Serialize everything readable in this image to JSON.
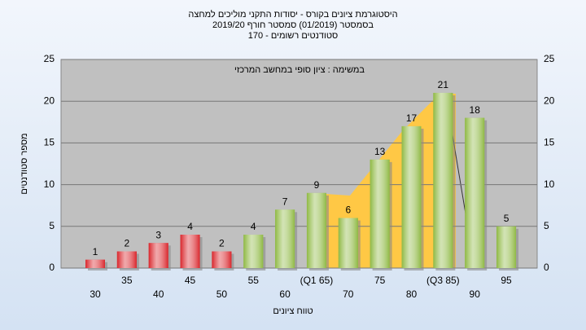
{
  "chart_data": {
    "type": "bar",
    "title": [
      "היסטוגרמת ציונים בקורס - יסודות התקני מוליכים למחצה",
      "בסמסטר  (01/2019)  סמסטר חורף 2019/20",
      "סטודנטים רשומים - 170"
    ],
    "annotation": "במשימה : ציון סופי במחשב המרכזי",
    "x_label": "טווח ציונים",
    "y_label": "מספר סטודנטים",
    "categories": [
      "30",
      "35",
      "40",
      "45",
      "50",
      "55",
      "60",
      "(Q1 65)",
      "70",
      "75",
      "80",
      "(Q3 85)",
      "90",
      "95"
    ],
    "values": [
      1,
      2,
      3,
      4,
      2,
      4,
      7,
      9,
      6,
      13,
      17,
      21,
      18,
      5
    ],
    "colors": [
      "#d9262c",
      "#d9262c",
      "#d9262c",
      "#d9262c",
      "#d9262c",
      "#8fb944",
      "#8fb944",
      "#8fb944",
      "#8fb944",
      "#8fb944",
      "#8fb944",
      "#8fb944",
      "#8fb944",
      "#8fb944"
    ],
    "ylim": [
      0,
      25
    ],
    "yticks": [
      0,
      5,
      10,
      15,
      20,
      25
    ],
    "grid": true
  }
}
